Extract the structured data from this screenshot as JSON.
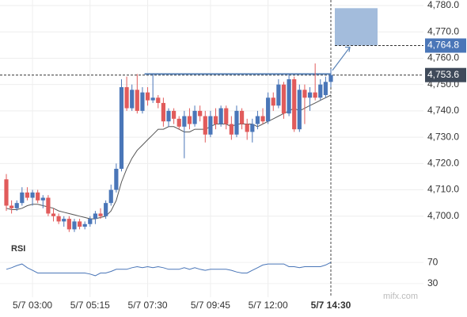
{
  "chart_data": {
    "type": "candlestick",
    "categories": [
      null,
      null,
      null,
      null,
      null,
      "5/7 03:00",
      null,
      null,
      null,
      null,
      null,
      null,
      null,
      null,
      null,
      null,
      "5/7 05:15",
      null,
      null,
      null,
      null,
      null,
      null,
      null,
      null,
      null,
      null,
      "5/7 07:30",
      null,
      null,
      null,
      null,
      null,
      null,
      null,
      null,
      null,
      null,
      null,
      "5/7 09:45",
      null,
      null,
      null,
      null,
      null,
      null,
      null,
      null,
      null,
      null,
      "5/7 12:00",
      null,
      null,
      null,
      null,
      null,
      null,
      null,
      null,
      null,
      null,
      null,
      "5/7 14:30"
    ],
    "open": [
      4714,
      4704,
      4703,
      4705,
      4709,
      4707,
      4709,
      4706,
      4707,
      4701,
      4700,
      4698,
      4699,
      4695,
      4698,
      4696,
      4697,
      4699,
      4701,
      4700,
      4705,
      4710,
      4718,
      4749,
      4741,
      4748,
      4740,
      4747,
      4744,
      4745,
      4743,
      4736,
      4740,
      4737,
      4734,
      4738,
      4735,
      4740,
      4738,
      4731,
      4738,
      4735,
      4741,
      4735,
      4731,
      4740,
      4735,
      4732,
      4735,
      4738,
      4736,
      4745,
      4742,
      4750,
      4739,
      4752,
      4733,
      4748,
      4745,
      4747,
      4745,
      4746,
      4751
    ],
    "high": [
      4716,
      4706,
      4706,
      4711,
      4711,
      4710,
      4710,
      4708,
      4708,
      4703,
      4701,
      4700,
      4700,
      4699,
      4699,
      4698,
      4700,
      4702,
      4703,
      4706,
      4712,
      4720,
      4752,
      4753,
      4750,
      4754,
      4749,
      4749,
      4754,
      4746,
      4745,
      4741,
      4741,
      4738,
      4740,
      4741,
      4742,
      4742,
      4740,
      4740,
      4741,
      4742,
      4742,
      4738,
      4742,
      4741,
      4737,
      4737,
      4740,
      4741,
      4747,
      4747,
      4752,
      4751,
      4754,
      4753,
      4750,
      4750,
      4749,
      4758,
      4752,
      4753,
      4756
    ],
    "low": [
      4702,
      4701,
      4702,
      4704,
      4706,
      4704,
      4705,
      4703,
      4700,
      4698,
      4697,
      4696,
      4694,
      4694,
      4695,
      4695,
      4696,
      4697,
      4699,
      4699,
      4704,
      4709,
      4717,
      4740,
      4740,
      4739,
      4739,
      4742,
      4743,
      4741,
      4734,
      4734,
      4735,
      4733,
      4722,
      4733,
      4734,
      4736,
      4728,
      4730,
      4733,
      4734,
      4733,
      4729,
      4730,
      4733,
      4729,
      4728,
      4733,
      4735,
      4735,
      4740,
      4741,
      4737,
      4738,
      4732,
      4732,
      4735,
      4740,
      4744,
      4744,
      4745,
      4749
    ],
    "close": [
      4704,
      4703,
      4705,
      4709,
      4707,
      4709,
      4706,
      4707,
      4701,
      4700,
      4698,
      4699,
      4695,
      4698,
      4696,
      4697,
      4699,
      4701,
      4700,
      4705,
      4710,
      4718,
      4749,
      4741,
      4748,
      4740,
      4747,
      4744,
      4745,
      4743,
      4736,
      4740,
      4737,
      4734,
      4738,
      4735,
      4740,
      4738,
      4731,
      4738,
      4735,
      4741,
      4735,
      4731,
      4740,
      4735,
      4732,
      4735,
      4738,
      4736,
      4745,
      4742,
      4750,
      4739,
      4752,
      4733,
      4748,
      4745,
      4747,
      4745,
      4750,
      4751,
      4753.6
    ],
    "up_color": "#4a76b8",
    "down_color": "#e15b5b",
    "ma": [
      4703,
      4702.5,
      4702.5,
      4703,
      4704,
      4704.5,
      4704.5,
      4704,
      4703.5,
      4703,
      4702,
      4701.5,
      4701,
      4700.5,
      4700,
      4699.5,
      4699,
      4699,
      4699.5,
      4700,
      4702,
      4706,
      4713,
      4718,
      4722,
      4725,
      4727,
      4729,
      4731,
      4733,
      4733,
      4734,
      4734,
      4733,
      4732,
      4732,
      4733,
      4733,
      4733,
      4734,
      4735,
      4735,
      4735,
      4734,
      4735,
      4735,
      4735,
      4735,
      4734,
      4735,
      4736,
      4737,
      4738,
      4739,
      4740,
      4741,
      4740,
      4741,
      4742,
      4743,
      4744,
      4745,
      4746
    ],
    "ma_color": "#555555",
    "ylim": [
      4690,
      4780
    ],
    "yticks": [
      {
        "value": 4700,
        "label": "4,700.0"
      },
      {
        "value": 4710,
        "label": "4,710.0"
      },
      {
        "value": 4720,
        "label": "4,720.0"
      },
      {
        "value": 4730,
        "label": "4,730.0"
      },
      {
        "value": 4740,
        "label": "4,740.0"
      },
      {
        "value": 4750,
        "label": "4,750.0"
      },
      {
        "value": 4760,
        "label": "4,760.0"
      },
      {
        "value": 4770,
        "label": "4,770.0"
      },
      {
        "value": 4780,
        "label": "4,780.0"
      }
    ],
    "levels": [
      {
        "value": 4764.8,
        "label": "4,764.8",
        "color": "#4a76b8"
      },
      {
        "value": 4753.6,
        "label": "4,753.6",
        "color": "#3f4a5a"
      }
    ],
    "target_top": 4779,
    "resistance": 4754,
    "grid": true,
    "rsi": {
      "title": "RSI",
      "color": "#4a76b8",
      "values": [
        57,
        60,
        64,
        67,
        60,
        55,
        50,
        50,
        50,
        50,
        50,
        50,
        50,
        50,
        50,
        50,
        48,
        45,
        50,
        50,
        53,
        57,
        57,
        57,
        60,
        62,
        60,
        62,
        60,
        62,
        60,
        57,
        57,
        57,
        60,
        57,
        60,
        57,
        55,
        57,
        57,
        57,
        57,
        55,
        52,
        50,
        50,
        55,
        60,
        65,
        67,
        67,
        67,
        67,
        62,
        62,
        60,
        62,
        62,
        62,
        62,
        65,
        70
      ],
      "ylim": [
        0,
        100
      ],
      "yticks": [
        30,
        70
      ]
    },
    "watermark": "mifx.com"
  }
}
